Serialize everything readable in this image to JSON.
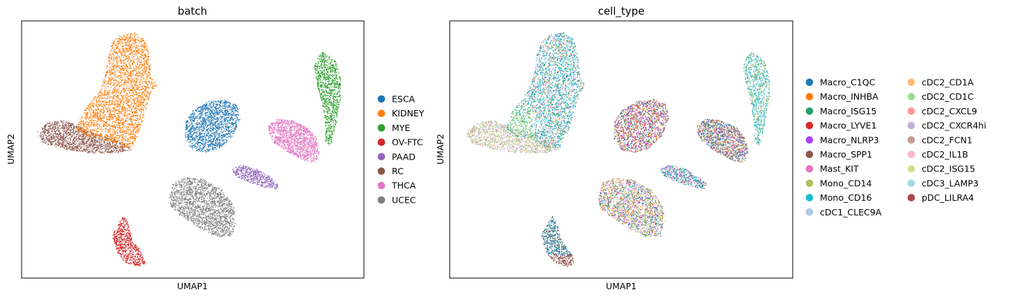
{
  "chart_data": [
    {
      "type": "scatter",
      "title": "batch",
      "xlabel": "UMAP1",
      "ylabel": "UMAP2",
      "xticks": false,
      "yticks": false,
      "legend_placement": "right",
      "legend": [
        {
          "label": "ESCA",
          "color": "#1f77b4"
        },
        {
          "label": "KIDNEY",
          "color": "#ff7f0e"
        },
        {
          "label": "MYE",
          "color": "#2ca02c"
        },
        {
          "label": "OV-FTC",
          "color": "#d62728"
        },
        {
          "label": "PAAD",
          "color": "#9467bd"
        },
        {
          "label": "RC",
          "color": "#8c564b"
        },
        {
          "label": "THCA",
          "color": "#e377c2"
        },
        {
          "label": "UCEC",
          "color": "#7f7f7f"
        }
      ]
    },
    {
      "type": "scatter",
      "title": "cell_type",
      "xlabel": "UMAP1",
      "ylabel": "UMAP2",
      "xticks": false,
      "yticks": false,
      "legend_placement": "right",
      "legend": [
        {
          "label": "Macro_C1QC",
          "color": "#1f77b4"
        },
        {
          "label": "Macro_INHBA",
          "color": "#ff7f0e"
        },
        {
          "label": "Macro_ISG15",
          "color": "#279e68"
        },
        {
          "label": "Macro_LYVE1",
          "color": "#d62728"
        },
        {
          "label": "Macro_NLRP3",
          "color": "#aa40fc"
        },
        {
          "label": "Macro_SPP1",
          "color": "#8c564b"
        },
        {
          "label": "Mast_KIT",
          "color": "#e377c2"
        },
        {
          "label": "Mono_CD14",
          "color": "#b5bd61"
        },
        {
          "label": "Mono_CD16",
          "color": "#17becf"
        },
        {
          "label": "cDC1_CLEC9A",
          "color": "#aec7e8"
        },
        {
          "label": "cDC2_CD1A",
          "color": "#ffbb78"
        },
        {
          "label": "cDC2_CD1C",
          "color": "#98df8a"
        },
        {
          "label": "cDC2_CXCL9",
          "color": "#ff9896"
        },
        {
          "label": "cDC2_CXCR4hi",
          "color": "#c5b0d5"
        },
        {
          "label": "cDC2_FCN1",
          "color": "#c49c94"
        },
        {
          "label": "cDC2_IL1B",
          "color": "#f7b6d2"
        },
        {
          "label": "cDC2_ISG15",
          "color": "#dbdb8d"
        },
        {
          "label": "cDC3_LAMP3",
          "color": "#9edae5"
        },
        {
          "label": "pDC_LILRA4",
          "color": "#ad494a"
        }
      ]
    }
  ]
}
